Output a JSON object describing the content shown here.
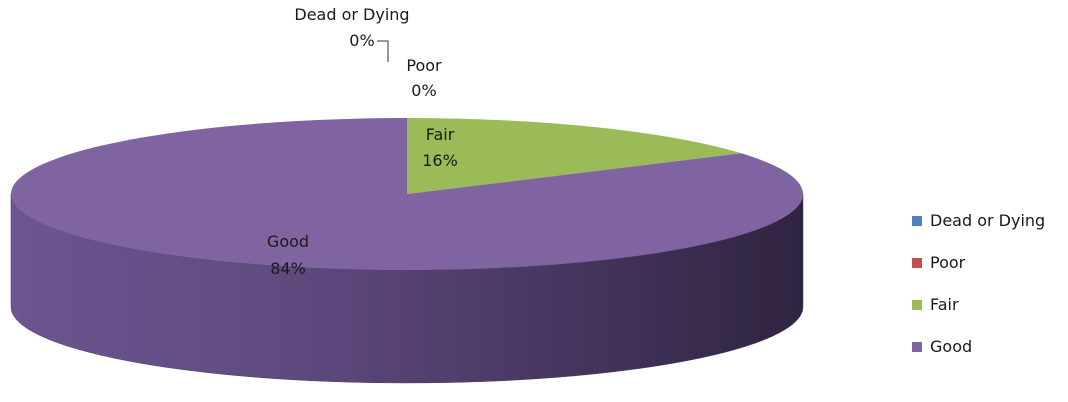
{
  "chart_data": {
    "type": "pie",
    "style": "3d",
    "slices": [
      {
        "label": "Dead or Dying",
        "value": 0,
        "percent_label": "0%",
        "color": "#4f81bd"
      },
      {
        "label": "Poor",
        "value": 0,
        "percent_label": "0%",
        "color": "#c0504d"
      },
      {
        "label": "Fair",
        "value": 16,
        "percent_label": "16%",
        "color": "#9bbb59"
      },
      {
        "label": "Good",
        "value": 84,
        "percent_label": "84%",
        "color": "#8064a2"
      }
    ],
    "legend": {
      "position": "right",
      "entries": [
        "Dead or Dying",
        "Poor",
        "Fair",
        "Good"
      ]
    }
  }
}
